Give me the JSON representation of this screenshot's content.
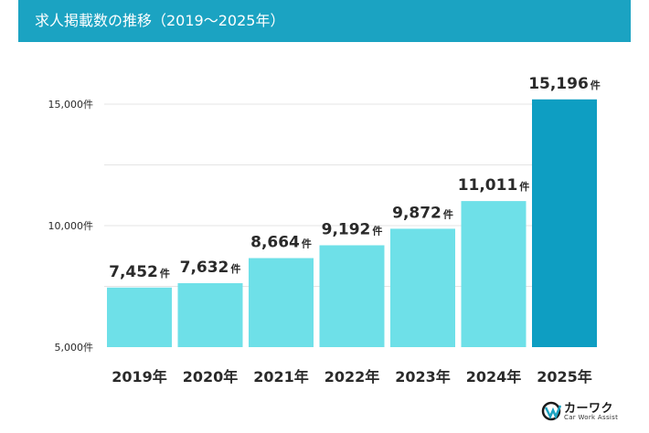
{
  "chart_data": {
    "type": "bar",
    "title": "求人掲載数の推移（2019～2025年）",
    "categories": [
      "2019年",
      "2020年",
      "2021年",
      "2022年",
      "2023年",
      "2024年",
      "2025年"
    ],
    "values": [
      7452,
      7632,
      8664,
      9192,
      9872,
      11011,
      15196
    ],
    "value_labels": [
      "7,452",
      "7,632",
      "8,664",
      "9,192",
      "9,872",
      "11,011",
      "15,196"
    ],
    "value_unit": "件",
    "yticks": [
      5000,
      10000,
      15000
    ],
    "ytick_labels": [
      "5,000件",
      "10,000件",
      "15,000件"
    ],
    "ylim": [
      5000,
      15500
    ],
    "grid": true,
    "colors": {
      "bar": "#6ee0e8",
      "highlight": "#0e9ec2",
      "header": "#1ba3c2",
      "grid": "#e4e4e4",
      "text": "#2a2a2a"
    },
    "highlight_index": 6
  },
  "logo": {
    "text": "カーワク",
    "sub": "Car Work Assist"
  }
}
